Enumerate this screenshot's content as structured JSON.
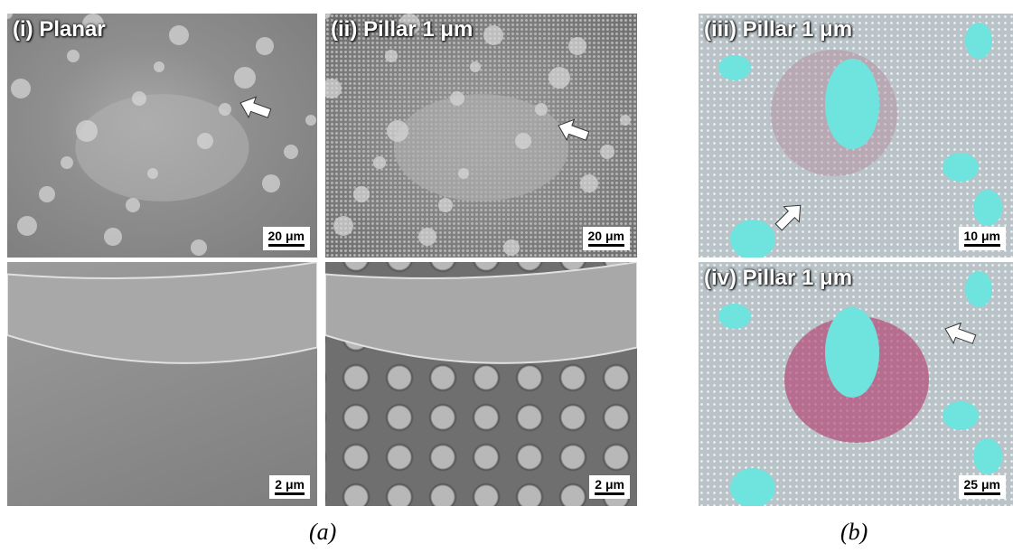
{
  "panel_a": {
    "caption": "(a)",
    "images": [
      {
        "title": "(i) Planar",
        "scale_bar": "20 μm"
      },
      {
        "title": "(ii) Pillar 1 μm",
        "scale_bar": "20 μm"
      },
      {
        "scale_bar": "2 μm"
      },
      {
        "scale_bar": "2 μm"
      }
    ]
  },
  "panel_b": {
    "caption": "(b)",
    "images": [
      {
        "title": "(iii) Pillar 1 μm",
        "scale_bar": "10 μm"
      },
      {
        "title": "(iv) Pillar 1 μm",
        "scale_bar": "25 μm"
      }
    ]
  }
}
